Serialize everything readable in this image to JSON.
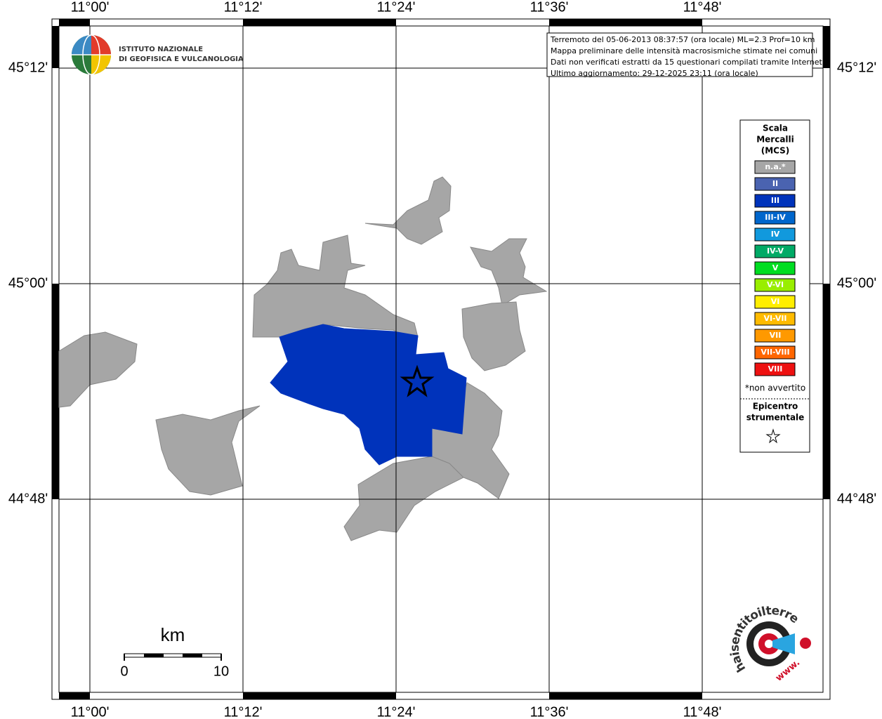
{
  "map": {
    "lon_labels": [
      "11°00'",
      "11°12'",
      "11°24'",
      "11°36'",
      "11°48'"
    ],
    "lat_labels": [
      "45°12'",
      "45°00'",
      "44°48'"
    ],
    "logo": {
      "line1": "ISTITUTO NAZIONALE",
      "line2": "DI GEOFISICA E VULCANOLOGIA"
    },
    "info": [
      "Terremoto del 05-06-2013 08:37:57 (ora locale) ML=2.3 Prof=10 km",
      "Mappa preliminare delle intensità macrosismiche stimate nei comuni",
      "Dati non verificati estratti da 15 questionari compilati tramite Internet.",
      "Ultimo aggiornamento: 29-12-2025 23:11 (ora locale)"
    ],
    "legend": {
      "title": [
        "Scala",
        "Mercalli",
        "(MCS)"
      ],
      "items": [
        {
          "label": "n.a.*",
          "color": "#a6a6a6"
        },
        {
          "label": "II",
          "color": "#4a63b0"
        },
        {
          "label": "III",
          "color": "#0033bb"
        },
        {
          "label": "III-IV",
          "color": "#0066cc"
        },
        {
          "label": "IV",
          "color": "#1199dd"
        },
        {
          "label": "IV-V",
          "color": "#00aa66"
        },
        {
          "label": "V",
          "color": "#00dd22"
        },
        {
          "label": "V-VI",
          "color": "#99ee00"
        },
        {
          "label": "VI",
          "color": "#ffee00"
        },
        {
          "label": "VI-VII",
          "color": "#ffbb00"
        },
        {
          "label": "VII",
          "color": "#ff9900"
        },
        {
          "label": "VII-VIII",
          "color": "#ff6600"
        },
        {
          "label": "VIII",
          "color": "#ee1111"
        }
      ],
      "footnote": "*non avvertito",
      "epicenter": [
        "Epicentro",
        "strumentale"
      ]
    },
    "scale_bar": {
      "unit": "km",
      "start": "0",
      "end": "10"
    },
    "site_logo": {
      "text": "haisentitoilterremoto.it",
      "www": "www."
    }
  }
}
